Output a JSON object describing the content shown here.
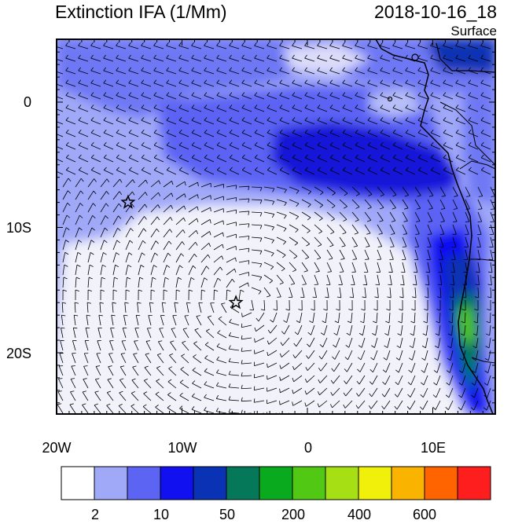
{
  "title": "Extinction IFA (1/Mm)",
  "datetime": "2018-10-16_18",
  "level": "Surface",
  "lat_labels": [
    "0",
    "10S",
    "20S"
  ],
  "lon_labels": [
    "20W",
    "10W",
    "0",
    "10E"
  ],
  "colorbar": {
    "colors": [
      "#ffffff",
      "#a0a8f8",
      "#5c64f4",
      "#1010f0",
      "#0a32b4",
      "#06785a",
      "#0aaa1e",
      "#50c814",
      "#a6e014",
      "#f0f00a",
      "#fab400",
      "#ff6400",
      "#ff1e1e"
    ],
    "labels": [
      "2",
      "10",
      "50",
      "200",
      "400",
      "600"
    ]
  },
  "markers": [
    {
      "lon": -14.3,
      "lat": -8.0,
      "name": "star"
    },
    {
      "lon": -5.7,
      "lat": -16.0,
      "name": "star"
    }
  ]
}
